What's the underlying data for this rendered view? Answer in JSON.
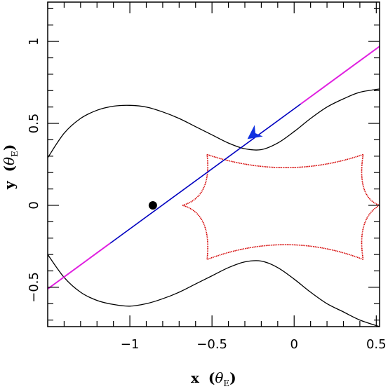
{
  "chart_data": {
    "type": "line",
    "xlabel": "x (θ_E)",
    "ylabel": "y (θ_E)",
    "xlabel_main": "x",
    "xlabel_sym": "θ",
    "xlabel_sub": "E",
    "ylabel_main": "y",
    "ylabel_sym": "θ",
    "ylabel_sub": "E",
    "xlim": [
      -1.5,
      0.52
    ],
    "ylim": [
      -0.74,
      1.24
    ],
    "xticks_major": [
      -1,
      -0.5,
      0,
      0.5
    ],
    "yticks_major": [
      -0.5,
      0,
      0.5,
      1
    ],
    "xtick_labels": [
      "−1",
      "−0.5",
      "0",
      "0.5"
    ],
    "ytick_labels": [
      "−0.5",
      "0",
      "0.5",
      "1"
    ],
    "grid": false,
    "critical_curve": {
      "color": "#000000",
      "upper": [
        [
          -1.5,
          0.29
        ],
        [
          -1.4,
          0.44
        ],
        [
          -1.3,
          0.53
        ],
        [
          -1.2,
          0.58
        ],
        [
          -1.1,
          0.605
        ],
        [
          -1.0,
          0.61
        ],
        [
          -0.9,
          0.6
        ],
        [
          -0.8,
          0.57
        ],
        [
          -0.7,
          0.53
        ],
        [
          -0.6,
          0.48
        ],
        [
          -0.5,
          0.43
        ],
        [
          -0.4,
          0.38
        ],
        [
          -0.3,
          0.345
        ],
        [
          -0.2,
          0.34
        ],
        [
          -0.1,
          0.38
        ],
        [
          0.0,
          0.45
        ],
        [
          0.1,
          0.53
        ],
        [
          0.2,
          0.6
        ],
        [
          0.3,
          0.65
        ],
        [
          0.4,
          0.69
        ],
        [
          0.52,
          0.71
        ]
      ],
      "lower": [
        [
          -1.5,
          -0.3
        ],
        [
          -1.4,
          -0.44
        ],
        [
          -1.3,
          -0.53
        ],
        [
          -1.2,
          -0.58
        ],
        [
          -1.1,
          -0.605
        ],
        [
          -1.0,
          -0.615
        ],
        [
          -0.9,
          -0.6
        ],
        [
          -0.8,
          -0.57
        ],
        [
          -0.7,
          -0.53
        ],
        [
          -0.6,
          -0.48
        ],
        [
          -0.5,
          -0.43
        ],
        [
          -0.4,
          -0.38
        ],
        [
          -0.3,
          -0.345
        ],
        [
          -0.2,
          -0.34
        ],
        [
          -0.1,
          -0.38
        ],
        [
          0.0,
          -0.45
        ],
        [
          0.1,
          -0.53
        ],
        [
          0.2,
          -0.6
        ],
        [
          0.3,
          -0.65
        ],
        [
          0.4,
          -0.7
        ],
        [
          0.52,
          -0.74
        ]
      ]
    },
    "caustic": {
      "color": "#d40000",
      "cusps": [
        [
          -0.53,
          0.31
        ],
        [
          0.42,
          0.31
        ],
        [
          0.42,
          -0.33
        ],
        [
          -0.53,
          -0.33
        ],
        [
          -0.68,
          0.0
        ],
        [
          0.52,
          0.0
        ]
      ],
      "segments": [
        {
          "from": [
            -0.53,
            0.31
          ],
          "ctrl": [
            -0.05,
            0.15
          ],
          "to": [
            0.42,
            0.31
          ]
        },
        {
          "from": [
            0.42,
            0.31
          ],
          "ctrl": [
            0.38,
            0.05
          ],
          "to": [
            0.52,
            0.0
          ]
        },
        {
          "from": [
            0.52,
            0.0
          ],
          "ctrl": [
            0.38,
            -0.08
          ],
          "to": [
            0.42,
            -0.33
          ]
        },
        {
          "from": [
            0.42,
            -0.33
          ],
          "ctrl": [
            -0.05,
            -0.15
          ],
          "to": [
            -0.53,
            -0.33
          ]
        },
        {
          "from": [
            -0.53,
            -0.33
          ],
          "ctrl": [
            -0.5,
            -0.05
          ],
          "to": [
            -0.68,
            0.0
          ]
        },
        {
          "from": [
            -0.68,
            0.0
          ],
          "ctrl": [
            -0.5,
            0.05
          ],
          "to": [
            -0.53,
            0.31
          ]
        }
      ]
    },
    "source_trajectory": {
      "start": [
        0.52,
        0.97
      ],
      "end": [
        -1.5,
        -0.51
      ],
      "blue_range_x": [
        -1.12,
        0.04
      ],
      "color_outer": "#e020e0",
      "color_inner": "#0000c0",
      "arrow": {
        "at": [
          -0.25,
          0.43
        ],
        "color": "#1030e0"
      }
    },
    "lens_point": {
      "x": -0.86,
      "y": 0.0,
      "color": "#000000"
    }
  }
}
